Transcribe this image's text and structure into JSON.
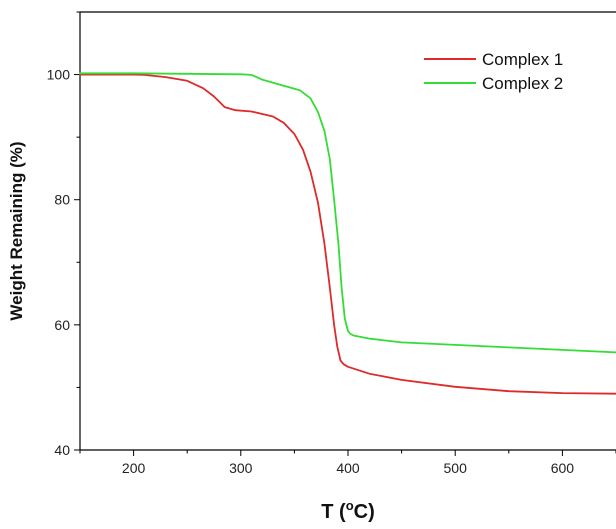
{
  "chart_data": {
    "type": "line",
    "title": "",
    "xlabel": "T (oC)",
    "xlabel_main": "T (",
    "xlabel_sup": "o",
    "xlabel_end": "C)",
    "ylabel": "Weight Remaining (%)",
    "xlim": [
      150,
      650
    ],
    "ylim": [
      40,
      110
    ],
    "xticks": [
      200,
      300,
      400,
      500,
      600
    ],
    "yticks": [
      40,
      60,
      80,
      100
    ],
    "grid": false,
    "legend_position": "top-right",
    "series": [
      {
        "name": "Complex 1",
        "color": "#dd2a2a",
        "x": [
          150,
          200,
          210,
          230,
          250,
          265,
          275,
          285,
          295,
          310,
          330,
          340,
          350,
          358,
          365,
          372,
          378,
          383,
          387,
          390,
          393,
          396,
          400,
          420,
          450,
          500,
          550,
          600,
          650
        ],
        "y": [
          100,
          100,
          99.95,
          99.6,
          99,
          97.8,
          96.5,
          94.8,
          94.3,
          94.1,
          93.3,
          92.3,
          90.5,
          88,
          84.5,
          79.5,
          73,
          66,
          60,
          56.5,
          54.3,
          53.7,
          53.3,
          52.2,
          51.2,
          50.1,
          49.4,
          49.1,
          49
        ]
      },
      {
        "name": "Complex 2",
        "color": "#33dd33",
        "x": [
          150,
          200,
          300,
          310,
          320,
          340,
          355,
          365,
          372,
          378,
          383,
          387,
          391,
          394,
          397,
          400,
          402,
          405,
          420,
          450,
          500,
          550,
          600,
          650
        ],
        "y": [
          100.2,
          100.2,
          100.05,
          99.95,
          99.2,
          98.2,
          97.5,
          96.2,
          94,
          91,
          86.5,
          80,
          73,
          66,
          61,
          59,
          58.6,
          58.3,
          57.8,
          57.2,
          56.8,
          56.4,
          56,
          55.6
        ]
      }
    ]
  }
}
